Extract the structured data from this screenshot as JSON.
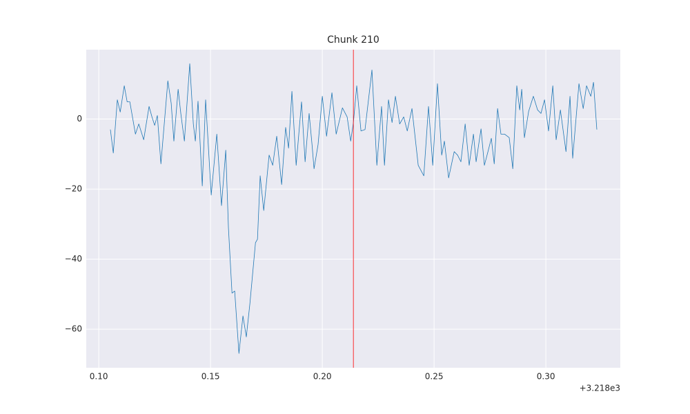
{
  "chart_data": {
    "type": "line",
    "title": "Chunk 210",
    "x_offset_label": "+3.218e3",
    "x": [
      0.1052,
      0.1065,
      0.1083,
      0.1096,
      0.1114,
      0.1127,
      0.1139,
      0.1164,
      0.1179,
      0.1201,
      0.1225,
      0.1238,
      0.125,
      0.1262,
      0.1278,
      0.1309,
      0.1324,
      0.1336,
      0.1355,
      0.1367,
      0.1383,
      0.1407,
      0.1423,
      0.1432,
      0.1444,
      0.1463,
      0.1478,
      0.1503,
      0.1528,
      0.1549,
      0.1568,
      0.158,
      0.1596,
      0.1608,
      0.1627,
      0.1645,
      0.166,
      0.1676,
      0.1701,
      0.171,
      0.1722,
      0.1738,
      0.1762,
      0.1778,
      0.1796,
      0.1818,
      0.1836,
      0.1849,
      0.1864,
      0.1883,
      0.1907,
      0.1923,
      0.1941,
      0.1954,
      0.1963,
      0.1981,
      0.2,
      0.2019,
      0.2043,
      0.2062,
      0.209,
      0.2111,
      0.2127,
      0.2139,
      0.2154,
      0.2173,
      0.2191,
      0.2222,
      0.2244,
      0.2265,
      0.2278,
      0.2296,
      0.2312,
      0.2327,
      0.2346,
      0.2364,
      0.238,
      0.2401,
      0.2429,
      0.2454,
      0.2475,
      0.2494,
      0.2515,
      0.2534,
      0.2546,
      0.2565,
      0.259,
      0.2605,
      0.262,
      0.2639,
      0.2657,
      0.2676,
      0.2688,
      0.271,
      0.2725,
      0.2741,
      0.2756,
      0.2769,
      0.2784,
      0.2799,
      0.2815,
      0.2836,
      0.2852,
      0.287,
      0.2883,
      0.2892,
      0.2904,
      0.2923,
      0.2944,
      0.2963,
      0.2978,
      0.2994,
      0.3012,
      0.3031,
      0.3046,
      0.3065,
      0.309,
      0.3108,
      0.312,
      0.3148,
      0.3167,
      0.3182,
      0.3201,
      0.3213,
      0.3228
    ],
    "values": [
      -3.0,
      -9.7,
      5.5,
      2.0,
      9.5,
      4.9,
      4.9,
      -4.3,
      -1.4,
      -5.9,
      3.6,
      0.6,
      -1.8,
      1.0,
      -12.8,
      10.9,
      4.5,
      -6.3,
      8.5,
      1.6,
      -6.3,
      15.8,
      -1.4,
      -6.3,
      5.1,
      -19.1,
      5.5,
      -21.7,
      -4.3,
      -24.7,
      -8.9,
      -31.0,
      -49.7,
      -49.1,
      -66.9,
      -56.2,
      -62.2,
      -52.7,
      -35.3,
      -34.3,
      -16.2,
      -26.1,
      -10.3,
      -13.2,
      -4.9,
      -18.7,
      -2.4,
      -8.3,
      7.9,
      -13.2,
      4.9,
      -12.2,
      1.6,
      -7.3,
      -14.2,
      -7.3,
      6.5,
      -4.9,
      7.5,
      -4.3,
      3.2,
      0.6,
      -6.3,
      -1.0,
      9.5,
      -3.4,
      -3.0,
      14.0,
      -13.2,
      3.6,
      -13.2,
      5.5,
      -1.0,
      6.5,
      -1.4,
      0.6,
      -3.4,
      3.0,
      -13.2,
      -16.2,
      3.6,
      -13.2,
      10.1,
      -10.3,
      -6.3,
      -16.8,
      -9.3,
      -10.3,
      -12.2,
      -1.4,
      -13.2,
      -4.3,
      -12.2,
      -2.8,
      -13.2,
      -9.3,
      -5.5,
      -12.8,
      3.0,
      -4.3,
      -4.3,
      -5.3,
      -14.2,
      9.5,
      2.6,
      8.5,
      -5.3,
      2.2,
      6.5,
      2.6,
      1.6,
      5.5,
      -3.4,
      9.5,
      -5.9,
      2.6,
      -9.3,
      6.5,
      -11.2,
      10.1,
      3.0,
      9.5,
      6.5,
      10.5,
      -3.0
    ],
    "color": "#1f77b4",
    "vline": {
      "x": 0.2139,
      "color": "red"
    },
    "xlim": [
      0.0944,
      0.3333
    ],
    "ylim": [
      -71,
      19.8
    ],
    "xticks": [
      {
        "value": 0.1,
        "label": "0.10"
      },
      {
        "value": 0.15,
        "label": "0.15"
      },
      {
        "value": 0.2,
        "label": "0.20"
      },
      {
        "value": 0.25,
        "label": "0.25"
      },
      {
        "value": 0.3,
        "label": "0.30"
      }
    ],
    "yticks": [
      {
        "value": -60,
        "label": "−60"
      },
      {
        "value": -40,
        "label": "−40"
      },
      {
        "value": -20,
        "label": "−20"
      },
      0
    ],
    "grid": true
  }
}
